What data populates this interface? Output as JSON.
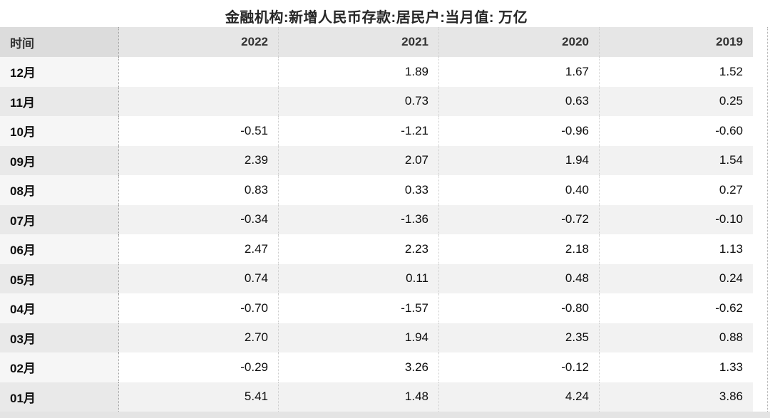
{
  "title": "金融机构:新增人民币存款:居民户:当月值: 万亿",
  "chart_data": {
    "type": "table",
    "title": "金融机构:新增人民币存款:居民户:当月值: 万亿",
    "unit": "万亿",
    "columns": [
      "时间",
      "2022",
      "2021",
      "2020",
      "2019"
    ],
    "rows": [
      [
        "12月",
        "",
        "1.89",
        "1.67",
        "1.52"
      ],
      [
        "11月",
        "",
        "0.73",
        "0.63",
        "0.25"
      ],
      [
        "10月",
        "-0.51",
        "-1.21",
        "-0.96",
        "-0.60"
      ],
      [
        "09月",
        "2.39",
        "2.07",
        "1.94",
        "1.54"
      ],
      [
        "08月",
        "0.83",
        "0.33",
        "0.40",
        "0.27"
      ],
      [
        "07月",
        "-0.34",
        "-1.36",
        "-0.72",
        "-0.10"
      ],
      [
        "06月",
        "2.47",
        "2.23",
        "2.18",
        "1.13"
      ],
      [
        "05月",
        "0.74",
        "0.11",
        "0.48",
        "0.24"
      ],
      [
        "04月",
        "-0.70",
        "-1.57",
        "-0.80",
        "-0.62"
      ],
      [
        "03月",
        "2.70",
        "1.94",
        "2.35",
        "0.88"
      ],
      [
        "02月",
        "-0.29",
        "3.26",
        "-0.12",
        "1.33"
      ],
      [
        "01月",
        "5.41",
        "1.48",
        "4.24",
        "3.86"
      ]
    ]
  }
}
